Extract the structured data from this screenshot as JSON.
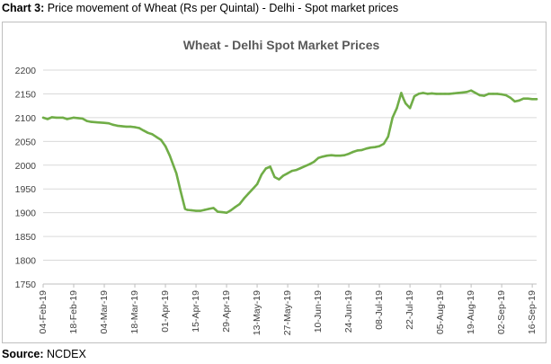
{
  "caption": {
    "label": "Chart 3:",
    "text": " Price movement of Wheat (Rs per Quintal) - Delhi - Spot market prices"
  },
  "source": {
    "label": "Source:",
    "text": " NCDEX"
  },
  "chart_data": {
    "type": "line",
    "title": "Wheat - Delhi Spot Market Prices",
    "xlabel": "",
    "ylabel": "",
    "ylim": [
      1750,
      2200
    ],
    "yticks": [
      1750,
      1800,
      1850,
      1900,
      1950,
      2000,
      2050,
      2100,
      2150,
      2200
    ],
    "xlim": [
      "2019-02-04",
      "2019-09-18"
    ],
    "xticks": [
      "04-Feb-19",
      "18-Feb-19",
      "04-Mar-19",
      "18-Mar-19",
      "01-Apr-19",
      "15-Apr-19",
      "29-Apr-19",
      "13-May-19",
      "27-May-19",
      "10-Jun-19",
      "24-Jun-19",
      "08-Jul-19",
      "22-Jul-19",
      "05-Aug-19",
      "19-Aug-19",
      "02-Sep-19",
      "16-Sep-19"
    ],
    "grid": true,
    "legend": "none",
    "line_color": "#70ad47",
    "series": [
      {
        "x": [
          "2019-02-04",
          "2019-02-06",
          "2019-02-08",
          "2019-02-10",
          "2019-02-13",
          "2019-02-15",
          "2019-02-18",
          "2019-02-20",
          "2019-02-22",
          "2019-02-24",
          "2019-02-26",
          "2019-03-01",
          "2019-03-04",
          "2019-03-06",
          "2019-03-08",
          "2019-03-10",
          "2019-03-12",
          "2019-03-14",
          "2019-03-16",
          "2019-03-18",
          "2019-03-20",
          "2019-03-22",
          "2019-03-24",
          "2019-03-26",
          "2019-03-28",
          "2019-03-30",
          "2019-04-01",
          "2019-04-03",
          "2019-04-05",
          "2019-04-06",
          "2019-04-08",
          "2019-04-10",
          "2019-04-11",
          "2019-04-13",
          "2019-04-15",
          "2019-04-17",
          "2019-04-19",
          "2019-04-21",
          "2019-04-23",
          "2019-04-25",
          "2019-04-27",
          "2019-04-29",
          "2019-05-01",
          "2019-05-03",
          "2019-05-05",
          "2019-05-07",
          "2019-05-09",
          "2019-05-11",
          "2019-05-13",
          "2019-05-15",
          "2019-05-17",
          "2019-05-19",
          "2019-05-21",
          "2019-05-23",
          "2019-05-25",
          "2019-05-27",
          "2019-05-29",
          "2019-05-31",
          "2019-06-02",
          "2019-06-04",
          "2019-06-06",
          "2019-06-08",
          "2019-06-10",
          "2019-06-12",
          "2019-06-14",
          "2019-06-16",
          "2019-06-18",
          "2019-06-20",
          "2019-06-22",
          "2019-06-24",
          "2019-06-26",
          "2019-06-28",
          "2019-06-30",
          "2019-07-02",
          "2019-07-04",
          "2019-07-06",
          "2019-07-08",
          "2019-07-10",
          "2019-07-12",
          "2019-07-14",
          "2019-07-16",
          "2019-07-18",
          "2019-07-19",
          "2019-07-20",
          "2019-07-22",
          "2019-07-24",
          "2019-07-26",
          "2019-07-28",
          "2019-07-30",
          "2019-08-01",
          "2019-08-03",
          "2019-08-05",
          "2019-08-07",
          "2019-08-09",
          "2019-08-11",
          "2019-08-13",
          "2019-08-15",
          "2019-08-17",
          "2019-08-19",
          "2019-08-21",
          "2019-08-23",
          "2019-08-25",
          "2019-08-27",
          "2019-08-29",
          "2019-08-31",
          "2019-09-02",
          "2019-09-04",
          "2019-09-06",
          "2019-09-08",
          "2019-09-10",
          "2019-09-12",
          "2019-09-14",
          "2019-09-16",
          "2019-09-18"
        ],
        "values": [
          2100,
          2097,
          2101,
          2100,
          2100,
          2097,
          2100,
          2099,
          2098,
          2093,
          2091,
          2090,
          2089,
          2088,
          2085,
          2083,
          2082,
          2081,
          2081,
          2080,
          2078,
          2073,
          2068,
          2065,
          2059,
          2053,
          2040,
          2020,
          1995,
          1983,
          1945,
          1908,
          1906,
          1905,
          1904,
          1904,
          1906,
          1908,
          1910,
          1902,
          1901,
          1900,
          1905,
          1912,
          1918,
          1930,
          1940,
          1950,
          1960,
          1980,
          1993,
          1997,
          1975,
          1970,
          1978,
          1983,
          1988,
          1990,
          1994,
          1998,
          2002,
          2007,
          2015,
          2018,
          2020,
          2021,
          2020,
          2020,
          2021,
          2024,
          2028,
          2031,
          2032,
          2035,
          2037,
          2038,
          2040,
          2045,
          2060,
          2100,
          2120,
          2152,
          2140,
          2130,
          2120,
          2145,
          2150,
          2152,
          2150,
          2151,
          2150,
          2150,
          2150,
          2150,
          2151,
          2152,
          2153,
          2154,
          2157,
          2152,
          2147,
          2146,
          2150,
          2150,
          2150,
          2149,
          2147,
          2142,
          2134,
          2136,
          2140,
          2140,
          2139,
          2139
        ]
      }
    ]
  }
}
